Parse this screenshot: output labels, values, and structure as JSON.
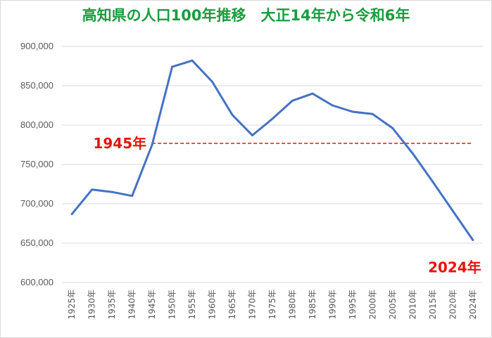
{
  "chart_data": {
    "type": "line",
    "title": "高知県の人口100年推移　大正14年から令和6年",
    "categories": [
      "1925年",
      "1930年",
      "1935年",
      "1940年",
      "1945年",
      "1950年",
      "1955年",
      "1960年",
      "1965年",
      "1970年",
      "1975年",
      "1980年",
      "1985年",
      "1990年",
      "1995年",
      "2000年",
      "2005年",
      "2010年",
      "2015年",
      "2020年",
      "2024年"
    ],
    "series": [
      {
        "values": [
          687000,
          718000,
          715000,
          710000,
          775000,
          874000,
          882000,
          855000,
          813000,
          787000,
          808000,
          831000,
          840000,
          825000,
          817000,
          814000,
          796000,
          764000,
          728000,
          691000,
          654000
        ]
      }
    ],
    "reference_line": {
      "value": 776800,
      "from": "1945年",
      "to": "2024年",
      "style": "dashed",
      "color": "#e8120c"
    },
    "annotations": [
      {
        "text": "1945年",
        "at": "1945年"
      },
      {
        "text": "2024年",
        "at": "2024年"
      }
    ],
    "ylim": [
      600000,
      900000
    ],
    "y_ticks": [
      600000,
      650000,
      700000,
      750000,
      800000,
      850000,
      900000
    ],
    "y_tick_labels": [
      "600,000",
      "650,000",
      "700,000",
      "750,000",
      "800,000",
      "850,000",
      "900,000"
    ],
    "grid": true,
    "line_color": "#4472c4",
    "title_color": "#1a9c3e"
  }
}
